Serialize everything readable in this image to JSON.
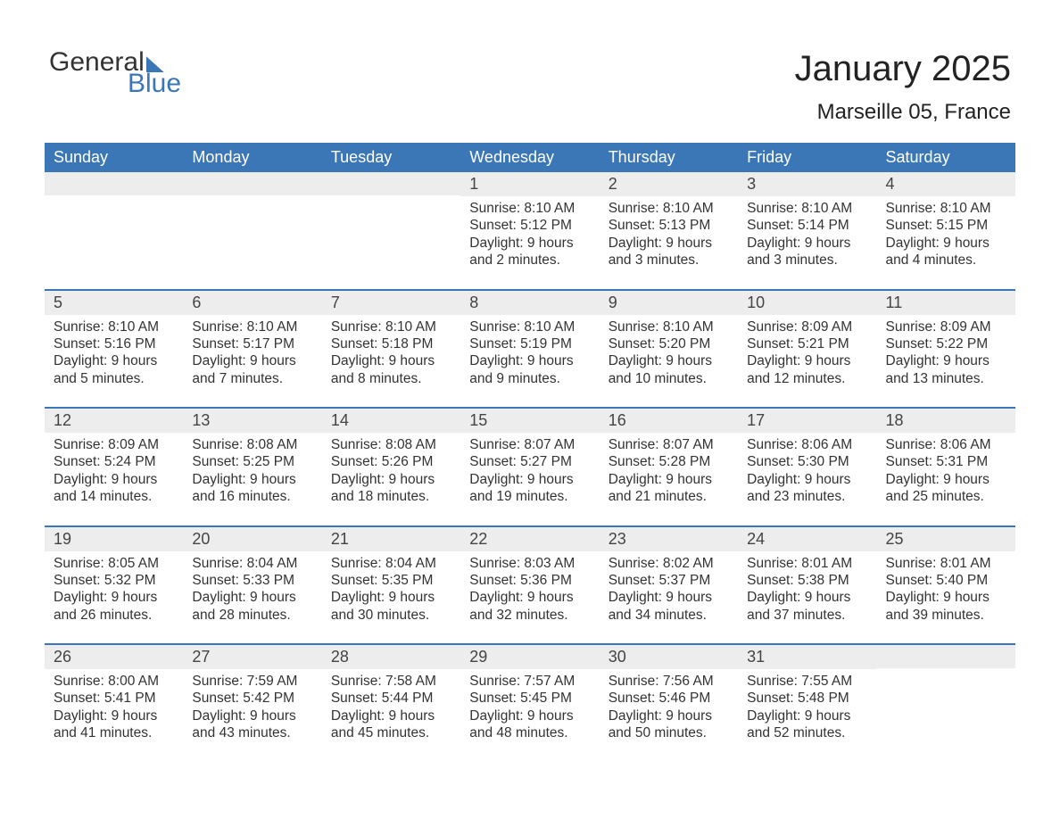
{
  "logo": {
    "general": "General",
    "blue": "Blue"
  },
  "header": {
    "title": "January 2025",
    "subtitle": "Marseille 05, France"
  },
  "colors": {
    "header_bg": "#3b77b6",
    "header_text": "#ffffff",
    "daynum_bg": "#ededed",
    "week_border": "#3b77b6",
    "body_text": "#333333",
    "page_bg": "#ffffff",
    "logo_blue": "#3b77b6"
  },
  "calendar": {
    "days_of_week": [
      "Sunday",
      "Monday",
      "Tuesday",
      "Wednesday",
      "Thursday",
      "Friday",
      "Saturday"
    ],
    "weeks": [
      [
        {
          "num": "",
          "sunrise": "",
          "sunset": "",
          "daylight1": "",
          "daylight2": ""
        },
        {
          "num": "",
          "sunrise": "",
          "sunset": "",
          "daylight1": "",
          "daylight2": ""
        },
        {
          "num": "",
          "sunrise": "",
          "sunset": "",
          "daylight1": "",
          "daylight2": ""
        },
        {
          "num": "1",
          "sunrise": "Sunrise: 8:10 AM",
          "sunset": "Sunset: 5:12 PM",
          "daylight1": "Daylight: 9 hours",
          "daylight2": "and 2 minutes."
        },
        {
          "num": "2",
          "sunrise": "Sunrise: 8:10 AM",
          "sunset": "Sunset: 5:13 PM",
          "daylight1": "Daylight: 9 hours",
          "daylight2": "and 3 minutes."
        },
        {
          "num": "3",
          "sunrise": "Sunrise: 8:10 AM",
          "sunset": "Sunset: 5:14 PM",
          "daylight1": "Daylight: 9 hours",
          "daylight2": "and 3 minutes."
        },
        {
          "num": "4",
          "sunrise": "Sunrise: 8:10 AM",
          "sunset": "Sunset: 5:15 PM",
          "daylight1": "Daylight: 9 hours",
          "daylight2": "and 4 minutes."
        }
      ],
      [
        {
          "num": "5",
          "sunrise": "Sunrise: 8:10 AM",
          "sunset": "Sunset: 5:16 PM",
          "daylight1": "Daylight: 9 hours",
          "daylight2": "and 5 minutes."
        },
        {
          "num": "6",
          "sunrise": "Sunrise: 8:10 AM",
          "sunset": "Sunset: 5:17 PM",
          "daylight1": "Daylight: 9 hours",
          "daylight2": "and 7 minutes."
        },
        {
          "num": "7",
          "sunrise": "Sunrise: 8:10 AM",
          "sunset": "Sunset: 5:18 PM",
          "daylight1": "Daylight: 9 hours",
          "daylight2": "and 8 minutes."
        },
        {
          "num": "8",
          "sunrise": "Sunrise: 8:10 AM",
          "sunset": "Sunset: 5:19 PM",
          "daylight1": "Daylight: 9 hours",
          "daylight2": "and 9 minutes."
        },
        {
          "num": "9",
          "sunrise": "Sunrise: 8:10 AM",
          "sunset": "Sunset: 5:20 PM",
          "daylight1": "Daylight: 9 hours",
          "daylight2": "and 10 minutes."
        },
        {
          "num": "10",
          "sunrise": "Sunrise: 8:09 AM",
          "sunset": "Sunset: 5:21 PM",
          "daylight1": "Daylight: 9 hours",
          "daylight2": "and 12 minutes."
        },
        {
          "num": "11",
          "sunrise": "Sunrise: 8:09 AM",
          "sunset": "Sunset: 5:22 PM",
          "daylight1": "Daylight: 9 hours",
          "daylight2": "and 13 minutes."
        }
      ],
      [
        {
          "num": "12",
          "sunrise": "Sunrise: 8:09 AM",
          "sunset": "Sunset: 5:24 PM",
          "daylight1": "Daylight: 9 hours",
          "daylight2": "and 14 minutes."
        },
        {
          "num": "13",
          "sunrise": "Sunrise: 8:08 AM",
          "sunset": "Sunset: 5:25 PM",
          "daylight1": "Daylight: 9 hours",
          "daylight2": "and 16 minutes."
        },
        {
          "num": "14",
          "sunrise": "Sunrise: 8:08 AM",
          "sunset": "Sunset: 5:26 PM",
          "daylight1": "Daylight: 9 hours",
          "daylight2": "and 18 minutes."
        },
        {
          "num": "15",
          "sunrise": "Sunrise: 8:07 AM",
          "sunset": "Sunset: 5:27 PM",
          "daylight1": "Daylight: 9 hours",
          "daylight2": "and 19 minutes."
        },
        {
          "num": "16",
          "sunrise": "Sunrise: 8:07 AM",
          "sunset": "Sunset: 5:28 PM",
          "daylight1": "Daylight: 9 hours",
          "daylight2": "and 21 minutes."
        },
        {
          "num": "17",
          "sunrise": "Sunrise: 8:06 AM",
          "sunset": "Sunset: 5:30 PM",
          "daylight1": "Daylight: 9 hours",
          "daylight2": "and 23 minutes."
        },
        {
          "num": "18",
          "sunrise": "Sunrise: 8:06 AM",
          "sunset": "Sunset: 5:31 PM",
          "daylight1": "Daylight: 9 hours",
          "daylight2": "and 25 minutes."
        }
      ],
      [
        {
          "num": "19",
          "sunrise": "Sunrise: 8:05 AM",
          "sunset": "Sunset: 5:32 PM",
          "daylight1": "Daylight: 9 hours",
          "daylight2": "and 26 minutes."
        },
        {
          "num": "20",
          "sunrise": "Sunrise: 8:04 AM",
          "sunset": "Sunset: 5:33 PM",
          "daylight1": "Daylight: 9 hours",
          "daylight2": "and 28 minutes."
        },
        {
          "num": "21",
          "sunrise": "Sunrise: 8:04 AM",
          "sunset": "Sunset: 5:35 PM",
          "daylight1": "Daylight: 9 hours",
          "daylight2": "and 30 minutes."
        },
        {
          "num": "22",
          "sunrise": "Sunrise: 8:03 AM",
          "sunset": "Sunset: 5:36 PM",
          "daylight1": "Daylight: 9 hours",
          "daylight2": "and 32 minutes."
        },
        {
          "num": "23",
          "sunrise": "Sunrise: 8:02 AM",
          "sunset": "Sunset: 5:37 PM",
          "daylight1": "Daylight: 9 hours",
          "daylight2": "and 34 minutes."
        },
        {
          "num": "24",
          "sunrise": "Sunrise: 8:01 AM",
          "sunset": "Sunset: 5:38 PM",
          "daylight1": "Daylight: 9 hours",
          "daylight2": "and 37 minutes."
        },
        {
          "num": "25",
          "sunrise": "Sunrise: 8:01 AM",
          "sunset": "Sunset: 5:40 PM",
          "daylight1": "Daylight: 9 hours",
          "daylight2": "and 39 minutes."
        }
      ],
      [
        {
          "num": "26",
          "sunrise": "Sunrise: 8:00 AM",
          "sunset": "Sunset: 5:41 PM",
          "daylight1": "Daylight: 9 hours",
          "daylight2": "and 41 minutes."
        },
        {
          "num": "27",
          "sunrise": "Sunrise: 7:59 AM",
          "sunset": "Sunset: 5:42 PM",
          "daylight1": "Daylight: 9 hours",
          "daylight2": "and 43 minutes."
        },
        {
          "num": "28",
          "sunrise": "Sunrise: 7:58 AM",
          "sunset": "Sunset: 5:44 PM",
          "daylight1": "Daylight: 9 hours",
          "daylight2": "and 45 minutes."
        },
        {
          "num": "29",
          "sunrise": "Sunrise: 7:57 AM",
          "sunset": "Sunset: 5:45 PM",
          "daylight1": "Daylight: 9 hours",
          "daylight2": "and 48 minutes."
        },
        {
          "num": "30",
          "sunrise": "Sunrise: 7:56 AM",
          "sunset": "Sunset: 5:46 PM",
          "daylight1": "Daylight: 9 hours",
          "daylight2": "and 50 minutes."
        },
        {
          "num": "31",
          "sunrise": "Sunrise: 7:55 AM",
          "sunset": "Sunset: 5:48 PM",
          "daylight1": "Daylight: 9 hours",
          "daylight2": "and 52 minutes."
        },
        {
          "num": "",
          "sunrise": "",
          "sunset": "",
          "daylight1": "",
          "daylight2": ""
        }
      ]
    ]
  }
}
